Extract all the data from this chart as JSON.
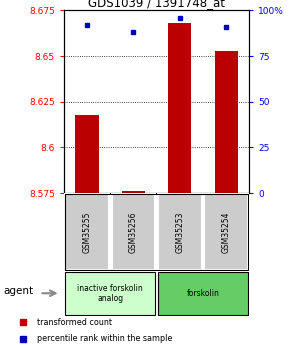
{
  "title": "GDS1039 / 1391748_at",
  "samples": [
    "GSM35255",
    "GSM35256",
    "GSM35253",
    "GSM35254"
  ],
  "red_values": [
    8.618,
    8.576,
    8.668,
    8.653
  ],
  "blue_values_pct": [
    92,
    88,
    96,
    91
  ],
  "ylim_left": [
    8.575,
    8.675
  ],
  "ylim_right": [
    0,
    100
  ],
  "yticks_left": [
    8.575,
    8.6,
    8.625,
    8.65,
    8.675
  ],
  "yticks_right": [
    0,
    25,
    50,
    75,
    100
  ],
  "ytick_labels_left": [
    "8.575",
    "8.6",
    "8.625",
    "8.65",
    "8.675"
  ],
  "ytick_labels_right": [
    "0",
    "25",
    "50",
    "75",
    "100%"
  ],
  "dotted_lines": [
    8.6,
    8.625,
    8.65
  ],
  "groups": [
    {
      "label": "inactive forskolin\nanalog",
      "color": "#ccffcc",
      "samples": [
        0,
        1
      ]
    },
    {
      "label": "forskolin",
      "color": "#66cc66",
      "samples": [
        2,
        3
      ]
    }
  ],
  "bar_color": "#bb0000",
  "dot_color": "#0000bb",
  "bar_width": 0.5,
  "agent_label": "agent",
  "legend_red": "transformed count",
  "legend_blue": "percentile rank within the sample",
  "background_color": "#ffffff",
  "x_positions": [
    1,
    2,
    3,
    4
  ]
}
